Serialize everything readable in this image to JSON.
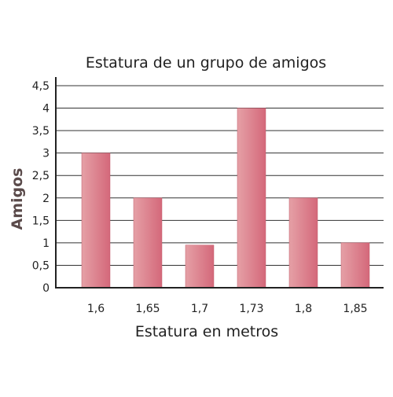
{
  "chart_data": {
    "type": "bar",
    "title": "Estatura de un grupo de amigos",
    "xlabel": "Estatura en metros",
    "ylabel": "Amigos",
    "categories": [
      "1,6",
      "1,65",
      "1,7",
      "1,73",
      "1,8",
      "1,85"
    ],
    "values": [
      3,
      2,
      0.95,
      4,
      2,
      1
    ],
    "ylim": [
      0,
      4.5
    ],
    "yticks": [
      "0",
      "0,5",
      "1",
      "1,5",
      "2",
      "2,5",
      "3",
      "3,5",
      "4",
      "4,5"
    ],
    "grid": true,
    "colors": {
      "bar_light": "#e5a0a6",
      "bar_dark": "#d4687a",
      "bar_edge": "#c05a6a",
      "grid": "#333333",
      "axis_title": "#5a4a4a"
    }
  }
}
